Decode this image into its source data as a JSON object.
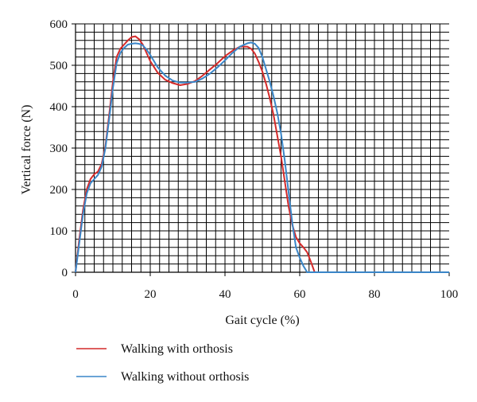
{
  "chart_data": {
    "type": "line",
    "title": "",
    "xlabel": "Gait cycle (%)",
    "ylabel": "Vertical force (N)",
    "xlim": [
      0,
      100
    ],
    "ylim": [
      0,
      600
    ],
    "xticks": [
      "0",
      "20",
      "40",
      "60",
      "80",
      "100"
    ],
    "yticks": [
      "0",
      "100",
      "200",
      "300",
      "400",
      "500",
      "600"
    ],
    "grid": "on",
    "legend_position": "bottom",
    "series": [
      {
        "name": "Walking with orthosis",
        "color": "#d42a2a",
        "x": [
          0,
          1,
          2,
          3,
          4,
          5,
          6,
          7,
          8,
          9,
          10,
          11,
          12,
          13,
          14,
          15,
          16,
          17,
          18,
          19,
          20,
          22,
          24,
          26,
          28,
          30,
          32,
          34,
          36,
          38,
          40,
          42,
          44,
          46,
          47,
          48,
          49,
          50,
          51,
          52,
          53,
          54,
          55,
          56,
          57,
          58,
          59,
          60,
          61,
          62,
          63,
          64,
          65,
          70,
          80,
          90,
          100
        ],
        "y": [
          0,
          80,
          150,
          200,
          225,
          237,
          243,
          262,
          305,
          380,
          460,
          520,
          540,
          550,
          560,
          568,
          570,
          563,
          550,
          530,
          510,
          482,
          465,
          457,
          452,
          455,
          462,
          475,
          490,
          505,
          522,
          535,
          545,
          545,
          540,
          528,
          508,
          485,
          455,
          420,
          380,
          330,
          280,
          220,
          160,
          115,
          85,
          70,
          60,
          48,
          25,
          0,
          0,
          0,
          0,
          0,
          0
        ]
      },
      {
        "name": "Walking without orthosis",
        "color": "#3a86c8",
        "x": [
          0,
          1,
          2,
          3,
          4,
          5,
          6,
          7,
          8,
          9,
          10,
          11,
          12,
          13,
          14,
          15,
          16,
          17,
          18,
          19,
          20,
          22,
          24,
          26,
          28,
          30,
          32,
          34,
          36,
          38,
          40,
          42,
          44,
          46,
          47,
          48,
          49,
          50,
          51,
          52,
          53,
          54,
          55,
          56,
          57,
          58,
          59,
          60,
          61,
          62,
          63,
          64,
          65,
          70,
          80,
          90,
          100
        ],
        "y": [
          0,
          70,
          140,
          190,
          215,
          225,
          235,
          255,
          300,
          370,
          445,
          505,
          530,
          542,
          550,
          552,
          553,
          552,
          548,
          538,
          525,
          495,
          475,
          463,
          458,
          458,
          460,
          468,
          480,
          495,
          512,
          530,
          545,
          553,
          555,
          552,
          542,
          520,
          490,
          460,
          425,
          385,
          335,
          270,
          195,
          120,
          60,
          35,
          15,
          0,
          0,
          0,
          0,
          0,
          0,
          0,
          0
        ]
      }
    ]
  }
}
